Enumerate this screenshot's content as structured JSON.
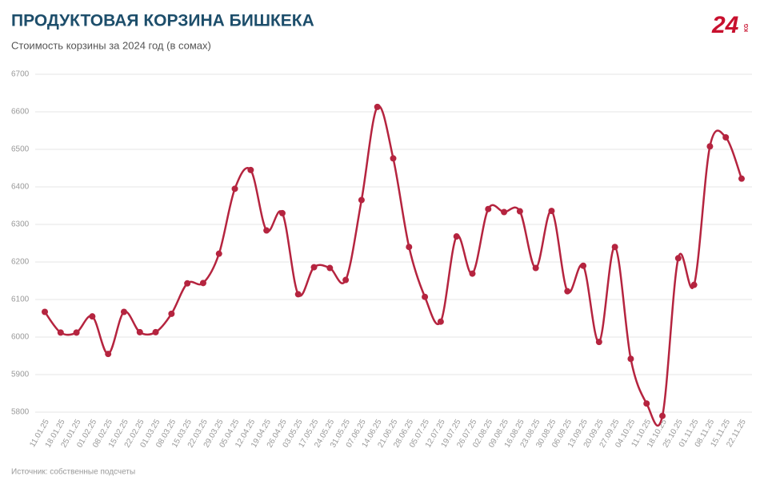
{
  "chart_data": {
    "type": "line",
    "title": "ПРОДУКТОВАЯ КОРЗИНА БИШКЕКА",
    "subtitle": "Стоимость корзины за 2024 год (в сомах)",
    "source": "Источник: собственные подсчеты",
    "logo": "24",
    "logo_sub": "KG",
    "categories": [
      "11.01.25",
      "18.01.25",
      "25.01.25",
      "01.02.25",
      "08.02.25",
      "15.02.25",
      "22.02.25",
      "01.03.25",
      "08.03.25",
      "15.03.25",
      "22.03.25",
      "29.03.25",
      "05.04.25",
      "12.04.25",
      "19.04.25",
      "26.04.25",
      "03.05.25",
      "17.05.25",
      "24.05.25",
      "31.05.25",
      "07.06.25",
      "14.06.25",
      "21.06.25",
      "28.06.25",
      "05.07.25",
      "12.07.25",
      "19.07.25",
      "26.07.25",
      "02.08.25",
      "09.08.25",
      "16.08.25",
      "23.08.25",
      "30.08.25",
      "06.09.25",
      "13.09.25",
      "20.09.25",
      "27.09.25",
      "04.10.25",
      "11.10.25",
      "18.10.25",
      "25.10.25",
      "01.11.25",
      "08.11.25",
      "15.11.25",
      "22.11.25"
    ],
    "values": [
      6067,
      6012,
      6012,
      6055,
      5955,
      6067,
      6013,
      6013,
      6062,
      6143,
      6144,
      6222,
      6395,
      6445,
      6284,
      6330,
      6114,
      6186,
      6184,
      6152,
      6365,
      6613,
      6476,
      6240,
      6107,
      6041,
      6268,
      6169,
      6341,
      6333,
      6335,
      6184,
      6336,
      6122,
      6190,
      5987,
      6240,
      5942,
      5823,
      5790,
      6210,
      6139,
      6508,
      6532,
      6422
    ],
    "color": "#b5243f",
    "ylim": [
      5800,
      6700
    ],
    "yticks": [
      5800,
      5900,
      6000,
      6100,
      6200,
      6300,
      6400,
      6500,
      6600,
      6700
    ],
    "grid": true
  }
}
